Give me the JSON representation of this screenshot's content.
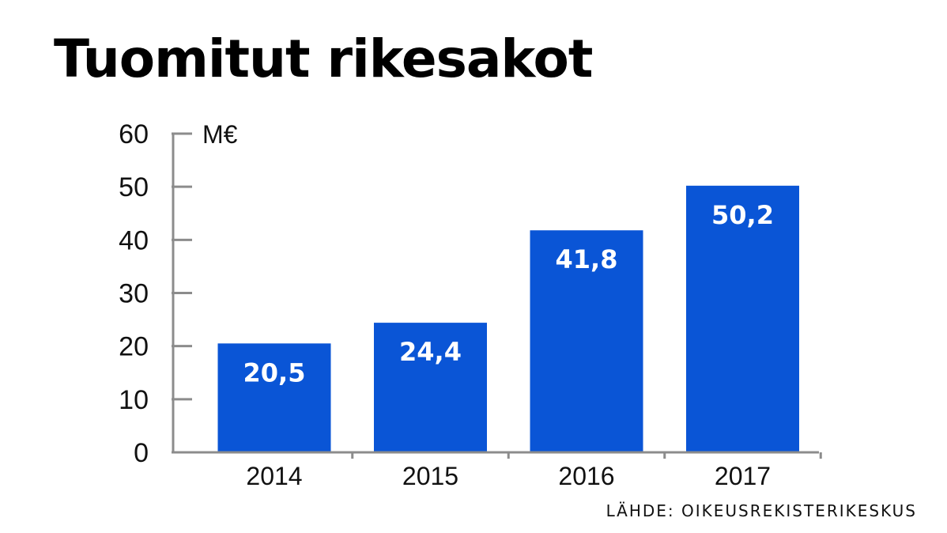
{
  "chart_data": {
    "type": "bar",
    "title": "Tuomitut rikesakot",
    "ylabel": "M€",
    "categories": [
      "2014",
      "2015",
      "2016",
      "2017"
    ],
    "values": [
      20.5,
      24.4,
      41.8,
      50.2
    ],
    "data_labels": [
      "20,5",
      "24,4",
      "41,8",
      "50,2"
    ],
    "ylim": [
      0,
      60
    ],
    "yticks": [
      0,
      10,
      20,
      30,
      40,
      50,
      60
    ],
    "grid": false,
    "bar_color": "#0a55d6",
    "axis_color": "#8c8c8c"
  },
  "source": "LÄHDE: OIKEUSREKISTERIKESKUS"
}
